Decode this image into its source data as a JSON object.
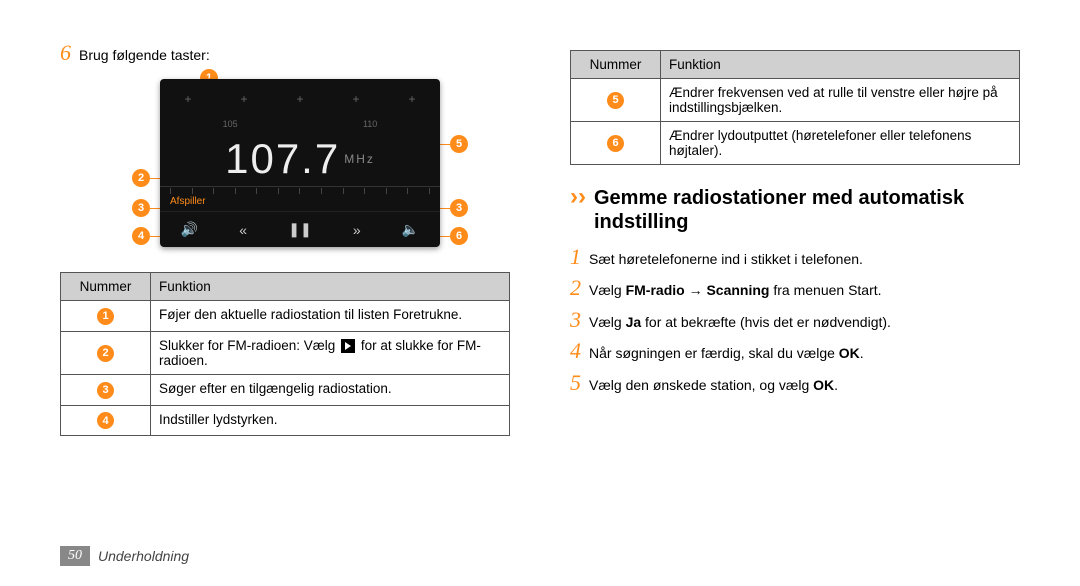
{
  "left": {
    "step6_num": "6",
    "step6_text": "Brug følgende taster:",
    "radio": {
      "freq": "107.7",
      "unit": "MHz",
      "scale_labels": [
        "105",
        "110"
      ],
      "status": "Afspiller",
      "controls": [
        "🔊",
        "«",
        "❚❚",
        "»",
        "🔈"
      ]
    },
    "table": {
      "hdr_num": "Nummer",
      "hdr_func": "Funktion",
      "rows": [
        {
          "n": "1",
          "f": "Føjer den aktuelle radiostation til listen Foretrukne."
        },
        {
          "n": "2",
          "f_pre": "Slukker for FM-radioen: Vælg ",
          "f_post": " for at slukke for FM-radioen.",
          "play": true
        },
        {
          "n": "3",
          "f": "Søger efter en tilgængelig radiostation."
        },
        {
          "n": "4",
          "f": "Indstiller lydstyrken."
        }
      ]
    }
  },
  "right": {
    "table": {
      "hdr_num": "Nummer",
      "hdr_func": "Funktion",
      "rows": [
        {
          "n": "5",
          "f": "Ændrer frekvensen ved at rulle til venstre eller højre på indstillingsbjælken."
        },
        {
          "n": "6",
          "f": "Ændrer lydoutputtet (høretelefoner eller telefonens højtaler)."
        }
      ]
    },
    "section_title": "Gemme radiostationer med automatisk indstilling",
    "steps": [
      {
        "n": "1",
        "t": "Sæt høretelefonerne ind i stikket i telefonen."
      },
      {
        "n": "2",
        "t_parts": [
          "Vælg ",
          "FM-radio",
          " → ",
          "Scanning",
          " fra menuen Start."
        ],
        "bold_idx": [
          1,
          3
        ]
      },
      {
        "n": "3",
        "t_parts": [
          "Vælg ",
          "Ja",
          " for at bekræfte (hvis det er nødvendigt)."
        ],
        "bold_idx": [
          1
        ]
      },
      {
        "n": "4",
        "t_parts": [
          "Når søgningen er færdig, skal du vælge ",
          "OK",
          "."
        ],
        "bold_idx": [
          1
        ]
      },
      {
        "n": "5",
        "t_parts": [
          "Vælg den ønskede station, og vælg ",
          "OK",
          "."
        ],
        "bold_idx": [
          1
        ]
      }
    ]
  },
  "footer": {
    "page": "50",
    "cat": "Underholdning"
  }
}
